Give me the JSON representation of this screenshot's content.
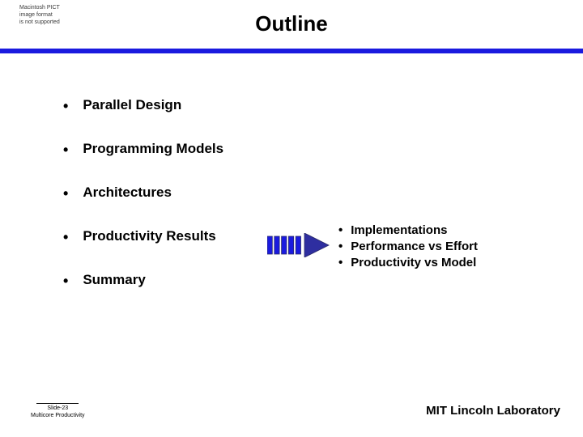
{
  "pict_notice": {
    "l1": "Macintosh PICT",
    "l2": "image format",
    "l3": "is not supported"
  },
  "title": "Outline",
  "accent_color": "#1a1adf",
  "main_items": [
    {
      "label": "Parallel Design",
      "highlighted": false
    },
    {
      "label": "Programming Models",
      "highlighted": false
    },
    {
      "label": "Architectures",
      "highlighted": false
    },
    {
      "label": "Productivity Results",
      "highlighted": true
    },
    {
      "label": "Summary",
      "highlighted": false
    }
  ],
  "sub_items": [
    "Implementations",
    "Performance vs Effort",
    "Productivity vs Model"
  ],
  "footer": {
    "slide_no": "Slide-23",
    "deck": "Multicore Productivity",
    "org": "MIT Lincoln Laboratory"
  },
  "arrow": {
    "width": 78,
    "height": 30,
    "bar_count": 5,
    "bar_color": "#1a1adf",
    "bar_stroke": "#2b2b6b",
    "head_fill": "#2e2ea0"
  }
}
